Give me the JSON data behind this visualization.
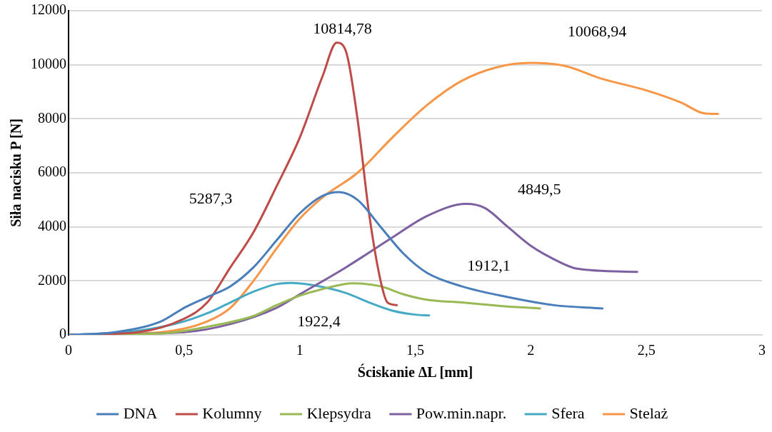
{
  "chart_data": {
    "type": "line",
    "xlabel": "Ściskanie ΔL [mm]",
    "ylabel": "Siła nacisku P [N]",
    "xlim": [
      0,
      3
    ],
    "xticks": [
      0,
      {
        "value": 0.5,
        "label": "0,5"
      },
      1,
      {
        "value": 1.5,
        "label": "1,5"
      },
      2,
      {
        "value": 2.5,
        "label": "2,5"
      },
      3
    ],
    "ylim": [
      0,
      12000
    ],
    "yticks": [
      0,
      2000,
      4000,
      6000,
      8000,
      10000,
      12000
    ],
    "grid": "y",
    "legend": "bottom",
    "marker": "none",
    "line_style": "solid",
    "series": [
      {
        "name": "DNA",
        "color": "#4a7ebb",
        "x": [
          0,
          0.2,
          0.4,
          0.5,
          0.6,
          0.7,
          0.8,
          0.9,
          1.0,
          1.1,
          1.17,
          1.25,
          1.35,
          1.45,
          1.55,
          1.7,
          1.9,
          2.1,
          2.31
        ],
        "values": [
          0,
          100,
          500,
          1000,
          1400,
          1800,
          2500,
          3500,
          4500,
          5150,
          5287.3,
          5000,
          4000,
          3000,
          2300,
          1800,
          1400,
          1100,
          980
        ]
      },
      {
        "name": "Kolumny",
        "color": "#be4b48",
        "x": [
          0,
          0.3,
          0.5,
          0.6,
          0.7,
          0.8,
          0.9,
          1.0,
          1.1,
          1.16,
          1.2,
          1.25,
          1.3,
          1.35,
          1.38,
          1.42
        ],
        "values": [
          0,
          100,
          600,
          1200,
          2500,
          3800,
          5500,
          7300,
          9600,
          10814.78,
          10500,
          8000,
          4500,
          2000,
          1200,
          1100
        ]
      },
      {
        "name": "Klepsydra",
        "color": "#98b954",
        "x": [
          0,
          0.4,
          0.6,
          0.8,
          0.9,
          1.0,
          1.1,
          1.23,
          1.35,
          1.45,
          1.55,
          1.7,
          1.9,
          2.04
        ],
        "values": [
          0,
          50,
          300,
          700,
          1100,
          1450,
          1700,
          1912.1,
          1800,
          1500,
          1300,
          1200,
          1050,
          980
        ]
      },
      {
        "name": "Pow.min.napr.",
        "color": "#7d60a0",
        "x": [
          0,
          0.5,
          0.7,
          0.9,
          1.0,
          1.2,
          1.4,
          1.55,
          1.72,
          1.8,
          1.9,
          2.0,
          2.1,
          2.2,
          2.46
        ],
        "values": [
          0,
          100,
          400,
          1000,
          1500,
          2500,
          3600,
          4400,
          4849.5,
          4700,
          4000,
          3300,
          2800,
          2450,
          2330
        ]
      },
      {
        "name": "Sfera",
        "color": "#46aac5",
        "x": [
          0,
          0.3,
          0.5,
          0.6,
          0.7,
          0.8,
          0.9,
          0.96,
          1.05,
          1.2,
          1.3,
          1.4,
          1.5,
          1.56
        ],
        "values": [
          0,
          150,
          500,
          800,
          1200,
          1600,
          1880,
          1922.4,
          1850,
          1550,
          1200,
          900,
          750,
          720
        ]
      },
      {
        "name": "Stelaż",
        "color": "#f79646",
        "x": [
          0,
          0.4,
          0.6,
          0.7,
          0.8,
          0.9,
          1.0,
          1.1,
          1.25,
          1.4,
          1.55,
          1.7,
          1.85,
          2.0,
          2.15,
          2.3,
          2.5,
          2.65,
          2.75,
          2.81
        ],
        "values": [
          0,
          100,
          500,
          1000,
          2000,
          3200,
          4300,
          5100,
          6000,
          7300,
          8500,
          9400,
          9900,
          10068.94,
          9950,
          9500,
          9050,
          8600,
          8200,
          8180
        ]
      }
    ],
    "annotations": [
      "10814,78",
      "10068,94",
      "5287,3",
      "4849,5",
      "1912,1",
      "1922,4"
    ]
  }
}
